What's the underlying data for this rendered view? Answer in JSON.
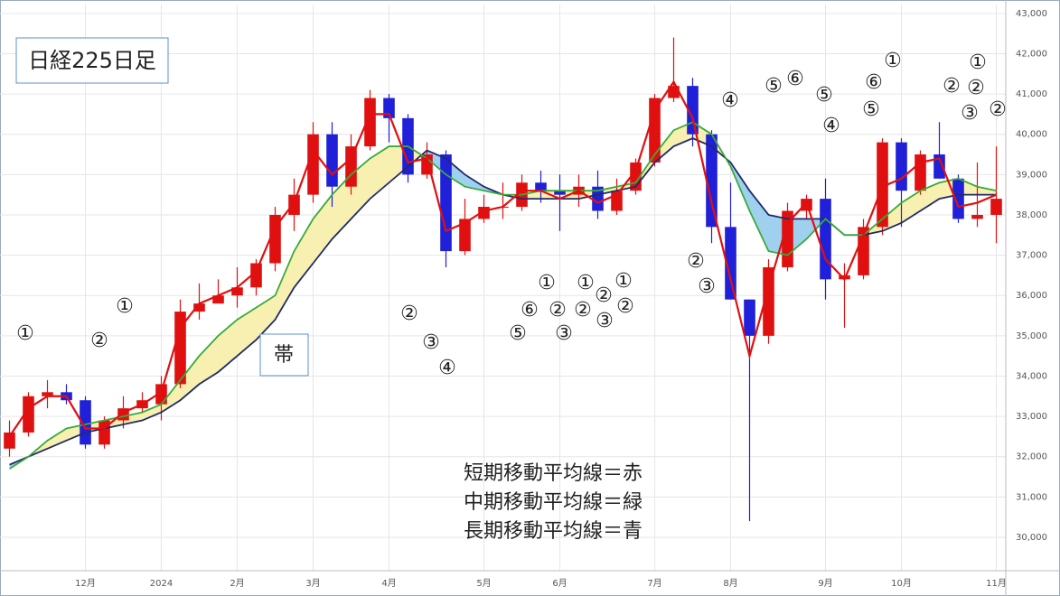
{
  "chart_data": {
    "type": "candlestick",
    "title": "日経225日足",
    "band_label": "帯",
    "categories": [
      null,
      null,
      null,
      null,
      "12月",
      null,
      null,
      null,
      "2024",
      null,
      null,
      null,
      "2月",
      null,
      null,
      null,
      "3月",
      null,
      null,
      null,
      "4月",
      null,
      null,
      null,
      null,
      "5月",
      null,
      null,
      null,
      "6月",
      null,
      null,
      null,
      null,
      "7月",
      null,
      null,
      null,
      "8月",
      null,
      null,
      null,
      null,
      "9月",
      null,
      null,
      null,
      "10月",
      null,
      null,
      null,
      null,
      "11月"
    ],
    "candles": {
      "up_color": "#e01010",
      "down_color": "#2020d8",
      "open": [
        32200,
        32600,
        33500,
        33600,
        33400,
        32300,
        32900,
        33200,
        33300,
        33800,
        35600,
        35800,
        36000,
        36200,
        36800,
        38000,
        38500,
        40000,
        38700,
        39700,
        40900,
        40400,
        39000,
        39500,
        37100,
        37900,
        38200,
        38200,
        38800,
        38600,
        38500,
        38700,
        38100,
        38600,
        39300,
        40900,
        41200,
        40000,
        37700,
        35900,
        35000,
        36700,
        38100,
        38400,
        36400,
        36500,
        37700,
        39800,
        38600,
        39500,
        38900,
        37900,
        38000
      ],
      "high": [
        32900,
        33600,
        33900,
        33800,
        33500,
        33000,
        33500,
        33600,
        34000,
        35900,
        36300,
        36400,
        36700,
        36900,
        38200,
        38900,
        40300,
        40300,
        40000,
        41100,
        41000,
        40500,
        39800,
        39600,
        38400,
        38500,
        38800,
        39000,
        39100,
        39000,
        39000,
        39100,
        38900,
        39400,
        41000,
        42400,
        41400,
        40100,
        38800,
        35900,
        36900,
        38300,
        38500,
        38900,
        36800,
        37900,
        39900,
        39900,
        39600,
        40300,
        39000,
        39300,
        39700
      ],
      "low": [
        32000,
        32500,
        33200,
        33300,
        32200,
        32200,
        32700,
        33100,
        32900,
        33700,
        35400,
        35800,
        35700,
        36000,
        36600,
        37600,
        38300,
        38200,
        38500,
        39600,
        39800,
        38800,
        38900,
        36700,
        37000,
        37800,
        37900,
        38100,
        38300,
        37600,
        38200,
        37900,
        38000,
        38500,
        39200,
        40800,
        39700,
        37300,
        35900,
        30400,
        34800,
        36600,
        37900,
        35900,
        35200,
        36400,
        37500,
        37700,
        38500,
        38900,
        37800,
        37700,
        37300
      ],
      "close": [
        32600,
        33500,
        33600,
        33400,
        32300,
        32900,
        33200,
        33400,
        33800,
        35600,
        35800,
        36000,
        36200,
        36800,
        38000,
        38500,
        40000,
        38700,
        39700,
        40900,
        40400,
        39000,
        39500,
        37100,
        37900,
        38200,
        38200,
        38800,
        38600,
        38500,
        38700,
        38100,
        38600,
        39300,
        40900,
        41200,
        40000,
        37700,
        35900,
        35000,
        36700,
        38100,
        38400,
        36400,
        36500,
        37700,
        39800,
        38600,
        39500,
        38900,
        37900,
        38000,
        38400
      ]
    },
    "series": [
      {
        "name": "短期移動平均線＝赤",
        "color": "#e01010",
        "values": [
          32500,
          33200,
          33500,
          33500,
          32700,
          32700,
          33100,
          33300,
          33600,
          35200,
          35800,
          36000,
          36200,
          36600,
          37700,
          38300,
          39600,
          39000,
          39400,
          40500,
          40500,
          39300,
          39400,
          37600,
          37800,
          38100,
          38200,
          38600,
          38600,
          38400,
          38600,
          38300,
          38500,
          39100,
          40600,
          41300,
          40400,
          38300,
          36400,
          34500,
          36200,
          37800,
          38300,
          36900,
          36400,
          37500,
          38700,
          38900,
          39300,
          39400,
          38200,
          38300,
          38500
        ]
      },
      {
        "name": "中期移動平均線＝緑",
        "color": "#3aaa3a",
        "values": [
          31700,
          32000,
          32400,
          32700,
          32800,
          32900,
          33000,
          33100,
          33300,
          33900,
          34500,
          35000,
          35400,
          35700,
          36000,
          37100,
          37900,
          38500,
          39000,
          39400,
          39700,
          39700,
          39400,
          39000,
          38700,
          38600,
          38500,
          38500,
          38600,
          38600,
          38600,
          38600,
          38700,
          38800,
          39500,
          40100,
          40300,
          40000,
          39200,
          38100,
          37100,
          37000,
          37400,
          37900,
          37500,
          37500,
          37900,
          38300,
          38600,
          38800,
          38900,
          38700,
          38600
        ]
      },
      {
        "name": "長期移動平均線＝青",
        "color": "#1f2a6b",
        "values": [
          31800,
          32000,
          32200,
          32400,
          32600,
          32700,
          32800,
          32900,
          33100,
          33400,
          33800,
          34100,
          34500,
          34900,
          35400,
          36200,
          36800,
          37400,
          37900,
          38400,
          38800,
          39200,
          39600,
          39400,
          39000,
          38700,
          38500,
          38400,
          38400,
          38400,
          38400,
          38500,
          38600,
          38700,
          39300,
          39700,
          39900,
          39700,
          39300,
          38600,
          38000,
          37900,
          37900,
          37900,
          37500,
          37500,
          37600,
          37800,
          38100,
          38400,
          38500,
          38500,
          38500
        ]
      }
    ],
    "band_colors": [
      "#f8f0b0",
      "#9fd0ee"
    ],
    "ylim": [
      29170,
      43220
    ],
    "yticks": [
      {
        "value": 30000,
        "label": "30,000"
      },
      {
        "value": 31000,
        "label": "31,000"
      },
      {
        "value": 32000,
        "label": "32,000"
      },
      {
        "value": 33000,
        "label": "33,000"
      },
      {
        "value": 34000,
        "label": "34,000"
      },
      {
        "value": 35000,
        "label": "35,000"
      },
      {
        "value": 36000,
        "label": "36,000"
      },
      {
        "value": 37000,
        "label": "37,000"
      },
      {
        "value": 38000,
        "label": "38,000"
      },
      {
        "value": 39000,
        "label": "39,000"
      },
      {
        "value": 40000,
        "label": "40,000"
      },
      {
        "value": 41000,
        "label": "41,000"
      },
      {
        "value": 42000,
        "label": "42,000"
      },
      {
        "value": 43000,
        "label": "43,000"
      }
    ],
    "grid": true,
    "annotations": [
      "①",
      "②",
      "①",
      "②",
      "③",
      "④",
      "①",
      "①",
      "①",
      "⑥",
      "②",
      "②",
      "②",
      "②",
      "⑤",
      "③",
      "③",
      "②",
      "③",
      "④",
      "⑤",
      "⑥",
      "⑤",
      "④",
      "①",
      "⑥",
      "⑤",
      "①",
      "②",
      "②",
      "③",
      "②"
    ]
  }
}
